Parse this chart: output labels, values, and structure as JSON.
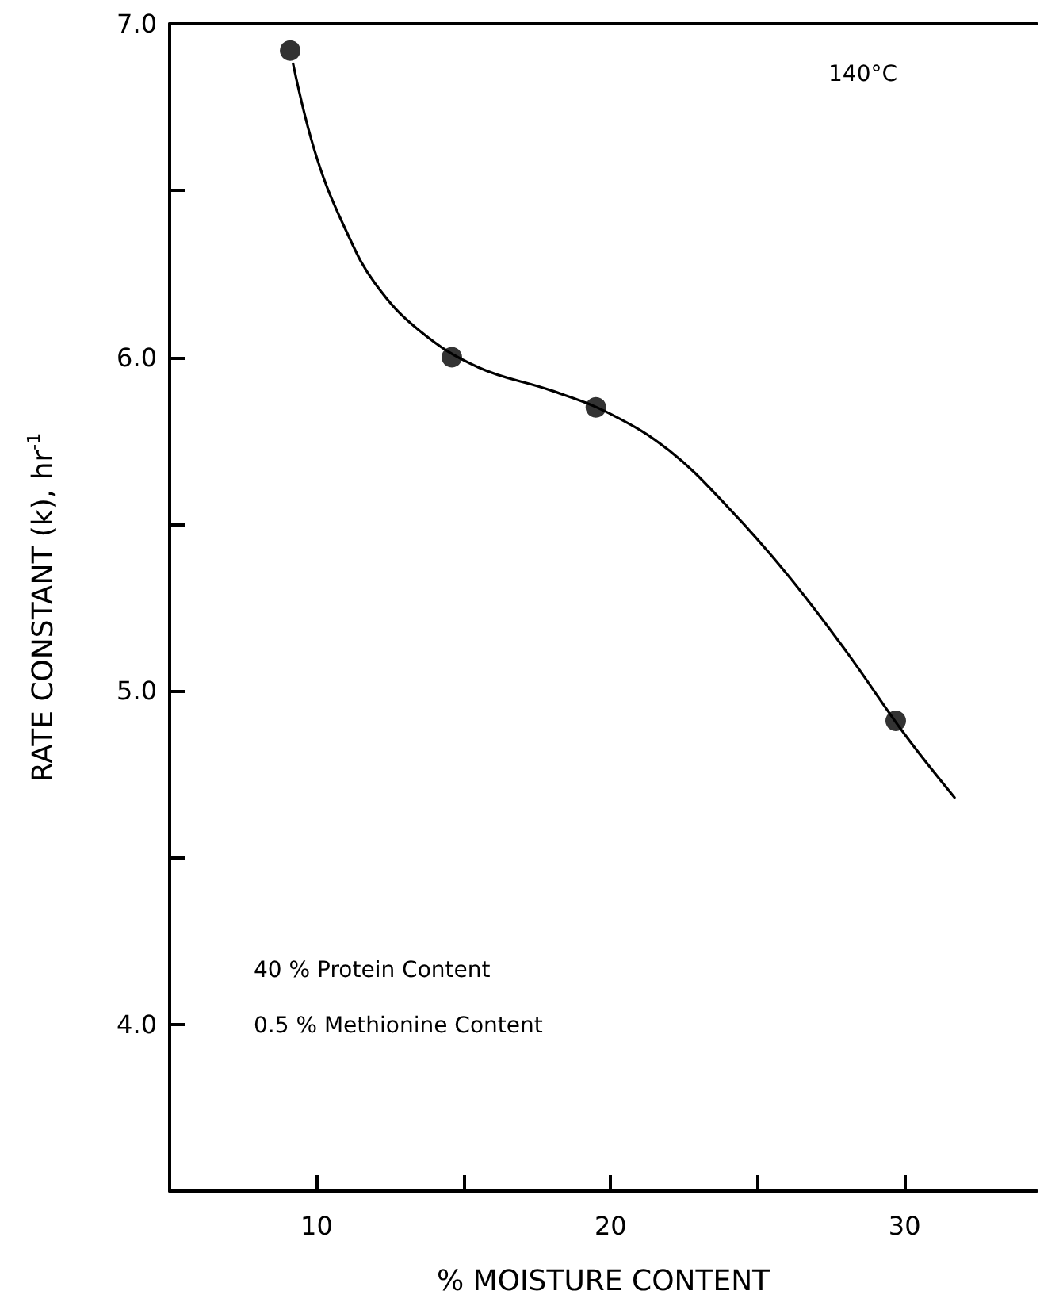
{
  "chart_data": {
    "type": "scatter",
    "xlabel": "% MOISTURE CONTENT",
    "ylabel": "RATE CONSTANT (k), hr$^{-1}$",
    "annotations": [
      "140°C",
      "40 % Protein Content",
      "0.5 % Methionine Content"
    ],
    "xlim": [
      5,
      34.5
    ],
    "xticks": [
      10,
      {
        "value": 15,
        "label": null
      },
      20,
      {
        "value": 25,
        "label": null
      },
      30
    ],
    "ylim": [
      3.5,
      7.0
    ],
    "yticks": [
      {
        "value": 4.0,
        "label": "4.0"
      },
      {
        "value": 4.5,
        "label": null
      },
      {
        "value": 5.0,
        "label": "5.0"
      },
      {
        "value": 5.5,
        "label": null
      },
      {
        "value": 6.0,
        "label": "6.0"
      },
      {
        "value": 6.5,
        "label": null
      },
      {
        "value": 7.0,
        "label": "7.0"
      }
    ],
    "grid": false,
    "series": [
      {
        "color": "#000000",
        "marker": "circle",
        "x": [
          9.1,
          14.6,
          19.5,
          29.7
        ],
        "values": [
          6.92,
          6.0,
          5.85,
          4.91
        ]
      },
      {
        "type": "line",
        "color": "#000000",
        "marker": "none",
        "line_style": "solid",
        "x": [
          9.2,
          10,
          11,
          12,
          13.5,
          15.5,
          18,
          20,
          22,
          24,
          26,
          28,
          30,
          31.7
        ],
        "values": [
          6.88,
          6.6,
          6.38,
          6.22,
          6.08,
          5.97,
          5.9,
          5.83,
          5.72,
          5.55,
          5.35,
          5.12,
          4.87,
          4.68
        ]
      }
    ]
  }
}
